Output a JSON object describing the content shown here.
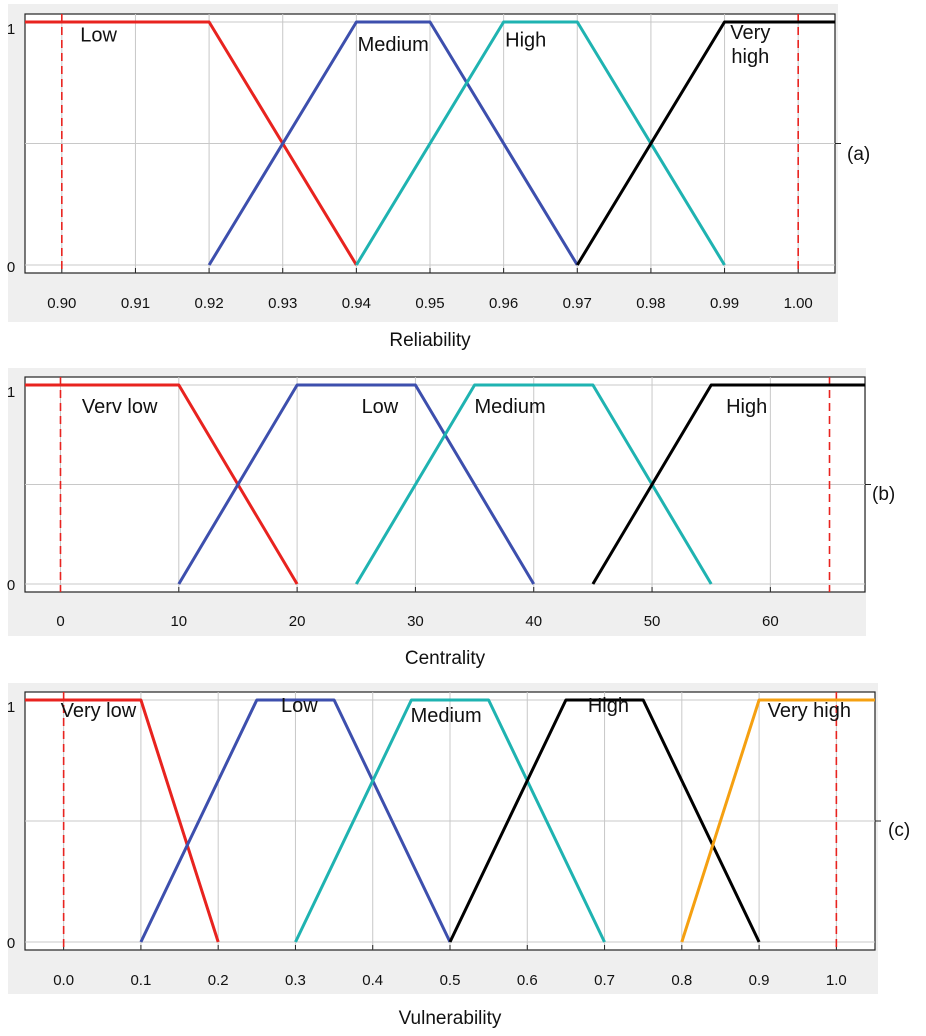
{
  "chart_data": [
    {
      "type": "line",
      "panel_label": "(a)",
      "xlabel": "Reliability",
      "ylabel": "",
      "xlim": [
        0.895,
        1.005
      ],
      "ylim": [
        0,
        1
      ],
      "x_ticks": [
        "0.90",
        "0.91",
        "0.92",
        "0.93",
        "0.94",
        "0.95",
        "0.96",
        "0.97",
        "0.98",
        "0.99",
        "1.00"
      ],
      "y_ticks": [
        "0",
        "1"
      ],
      "grid": true,
      "range_markers": [
        0.9,
        1.0
      ],
      "series": [
        {
          "name": "Low",
          "color": "#e8231f",
          "x": [
            0.895,
            0.92,
            0.94
          ],
          "y": [
            1,
            1,
            0
          ],
          "label_at": [
            0.905,
            0.92
          ]
        },
        {
          "name": "Medium",
          "color": "#3d4fad",
          "x": [
            0.92,
            0.94,
            0.95,
            0.97
          ],
          "y": [
            0,
            1,
            1,
            0
          ],
          "label_at": [
            0.945,
            0.88
          ]
        },
        {
          "name": "High",
          "color": "#1fb3b1",
          "x": [
            0.94,
            0.96,
            0.97,
            0.99
          ],
          "y": [
            0,
            1,
            1,
            0
          ],
          "label_at": [
            0.963,
            0.9
          ]
        },
        {
          "name": "Very high",
          "label_lines": [
            "Very",
            "high"
          ],
          "color": "#000000",
          "x": [
            0.97,
            0.99,
            1.005
          ],
          "y": [
            0,
            1,
            1
          ],
          "label_at": [
            0.9935,
            0.93
          ]
        }
      ]
    },
    {
      "type": "line",
      "panel_label": "(b)",
      "xlabel": "Centrality",
      "ylabel": "",
      "xlim": [
        -3,
        68
      ],
      "ylim": [
        0,
        1
      ],
      "x_ticks": [
        "0",
        "10",
        "20",
        "30",
        "40",
        "50",
        "60"
      ],
      "y_ticks": [
        "0",
        "1"
      ],
      "grid": true,
      "range_markers": [
        0,
        65
      ],
      "series": [
        {
          "name": "Verv low",
          "color": "#e8231f",
          "x": [
            -3,
            10,
            20
          ],
          "y": [
            1,
            1,
            0
          ],
          "label_at": [
            5,
            0.86
          ]
        },
        {
          "name": "Low",
          "color": "#3d4fad",
          "x": [
            10,
            20,
            30,
            40
          ],
          "y": [
            0,
            1,
            1,
            0
          ],
          "label_at": [
            27,
            0.86
          ]
        },
        {
          "name": "Medium",
          "color": "#1fb3b1",
          "x": [
            25,
            35,
            45,
            55
          ],
          "y": [
            0,
            1,
            1,
            0
          ],
          "label_at": [
            38,
            0.86
          ]
        },
        {
          "name": "High",
          "color": "#000000",
          "x": [
            45,
            55,
            68
          ],
          "y": [
            0,
            1,
            1
          ],
          "label_at": [
            58,
            0.86
          ]
        }
      ]
    },
    {
      "type": "line",
      "panel_label": "(c)",
      "xlabel": "Vulnerability",
      "ylabel": "",
      "xlim": [
        -0.05,
        1.05
      ],
      "ylim": [
        0,
        1
      ],
      "x_ticks": [
        "0.0",
        "0.1",
        "0.2",
        "0.3",
        "0.4",
        "0.5",
        "0.6",
        "0.7",
        "0.8",
        "0.9",
        "1.0"
      ],
      "y_ticks": [
        "0",
        "1"
      ],
      "grid": true,
      "range_markers": [
        0.0,
        1.0
      ],
      "series": [
        {
          "name": "Very low",
          "color": "#e8231f",
          "x": [
            -0.05,
            0.1,
            0.2
          ],
          "y": [
            1,
            1,
            0
          ],
          "label_at": [
            0.045,
            0.93
          ]
        },
        {
          "name": "Low",
          "color": "#3d4fad",
          "x": [
            0.1,
            0.25,
            0.35,
            0.5
          ],
          "y": [
            0,
            1,
            1,
            0
          ],
          "label_at": [
            0.305,
            0.95
          ]
        },
        {
          "name": "Medium",
          "color": "#1fb3b1",
          "x": [
            0.3,
            0.45,
            0.55,
            0.7
          ],
          "y": [
            0,
            1,
            1,
            0
          ],
          "label_at": [
            0.495,
            0.91
          ]
        },
        {
          "name": "High",
          "color": "#000000",
          "x": [
            0.5,
            0.65,
            0.75,
            0.9
          ],
          "y": [
            0,
            1,
            1,
            0
          ],
          "label_at": [
            0.705,
            0.95
          ]
        },
        {
          "name": "Very high",
          "color": "#f5a011",
          "x": [
            0.8,
            0.9,
            1.05
          ],
          "y": [
            0,
            1,
            1
          ],
          "label_at": [
            0.965,
            0.93
          ]
        }
      ]
    }
  ]
}
